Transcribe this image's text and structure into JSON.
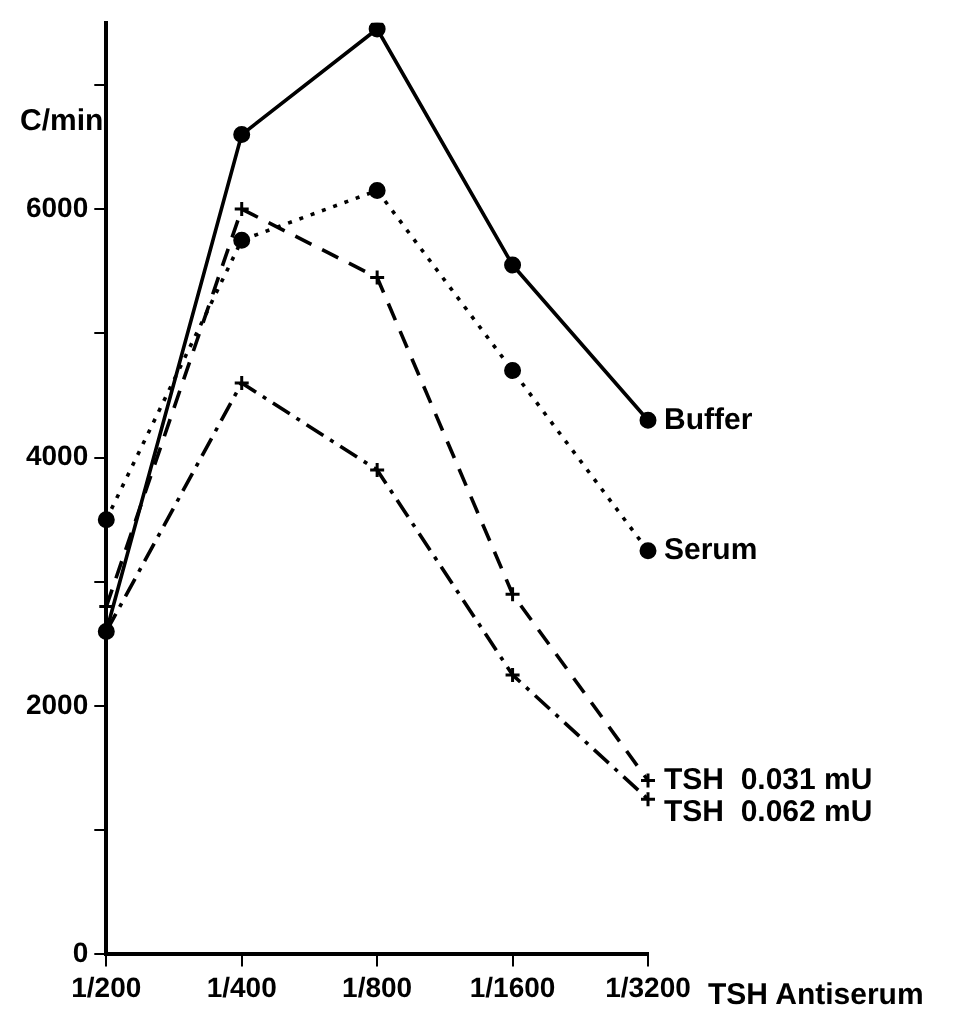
{
  "chart_data": {
    "type": "line",
    "ylabel": "C/min",
    "xlabel": "TSH Antiserum",
    "categories": [
      "1/200",
      "1/400",
      "1/800",
      "1/1600",
      "1/3200"
    ],
    "ylim": [
      0,
      7500
    ],
    "yticks": [
      0,
      {
        "value": 1000,
        "label": null
      },
      2000,
      {
        "value": 3000,
        "label": null
      },
      4000,
      {
        "value": 5000,
        "label": null
      },
      6000,
      {
        "value": 7000,
        "label": null
      }
    ],
    "grid": false,
    "legend": false,
    "series": [
      {
        "name": "Buffer",
        "color": "#000000",
        "marker": "circle",
        "line_style": "solid",
        "values": [
          2600,
          6600,
          7450,
          5550,
          4300
        ]
      },
      {
        "name": "Serum",
        "color": "#000000",
        "marker": "circle",
        "line_style": "dotted",
        "values": [
          3500,
          5750,
          6150,
          4700,
          3250
        ]
      },
      {
        "name": "TSH  0.031 mU",
        "color": "#000000",
        "marker": "cross",
        "line_style": "dashed",
        "values": [
          2800,
          6000,
          5450,
          2900,
          1400
        ]
      },
      {
        "name": "TSH  0.062 mU",
        "color": "#000000",
        "marker": "cross",
        "line_style": "dashdot",
        "values": [
          2600,
          4600,
          3900,
          2250,
          1250
        ]
      }
    ]
  }
}
